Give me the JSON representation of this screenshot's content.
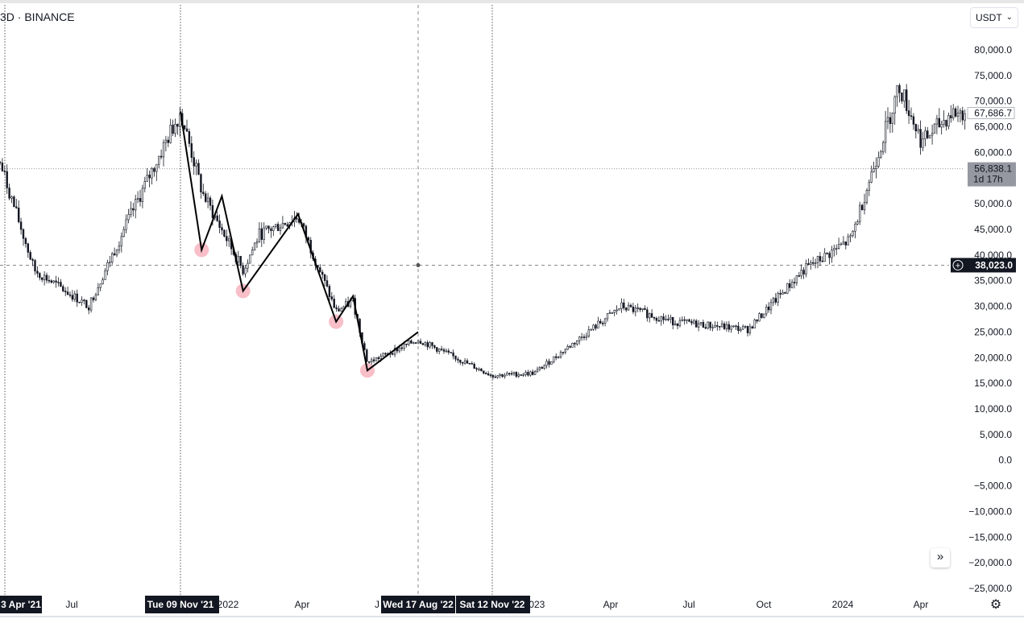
{
  "header": {
    "symbol_text": "3D · BINANCE",
    "currency_label": "USDT",
    "currency_chevron": "⌄"
  },
  "price_axis": {
    "ticks": [
      "80,000.0",
      "75,000.0",
      "70,000.0",
      "65,000.0",
      "60,000.0",
      "55,000.0",
      "50,000.0",
      "45,000.0",
      "40,000.0",
      "35,000.0",
      "30,000.0",
      "25,000.0",
      "20,000.0",
      "15,000.0",
      "10,000.0",
      "5,000.0",
      "0.0",
      "−5,000.0",
      "−10,000.0",
      "−15,000.0",
      "−20,000.0",
      "−25,000.0"
    ],
    "last_price": "67,686.7",
    "level_badge": {
      "price": "56,838.1",
      "countdown": "1d 17h"
    },
    "crosshair_price": "38,023.0",
    "crosshair_plus": "+"
  },
  "time_axis": {
    "ticks": [
      "Jul",
      "2022",
      "Apr",
      "J",
      "2023",
      "Apr",
      "Jul",
      "Oct",
      "2024",
      "Apr"
    ],
    "highlight_labels": [
      "3 Apr '21",
      "Tue 09 Nov '21",
      "Wed 17 Aug '22",
      "Sat 12 Nov '22"
    ]
  },
  "chart_data": {
    "type": "candlestick",
    "symbol": "3D · BINANCE",
    "currency": "USDT",
    "ylim": [
      -25000,
      80000
    ],
    "x": [
      "2021-04-03",
      "2021-05-15",
      "2021-07-20",
      "2021-09-07",
      "2021-11-09",
      "2021-12-05",
      "2022-01-22",
      "2022-02-10",
      "2022-03-28",
      "2022-05-12",
      "2022-06-01",
      "2022-06-18",
      "2022-08-17",
      "2022-11-12",
      "2023-01-01",
      "2023-04-14",
      "2023-06-15",
      "2023-09-11",
      "2023-11-15",
      "2024-01-11",
      "2024-03-14",
      "2024-04-12",
      "2024-05-20"
    ],
    "values": [
      58000,
      37000,
      30000,
      47000,
      68000,
      52000,
      37000,
      44000,
      47500,
      29000,
      31000,
      19000,
      23500,
      16500,
      17000,
      30000,
      27000,
      25500,
      37000,
      43000,
      73000,
      62000,
      67686.7
    ],
    "zigzag_drawing": [
      {
        "date": "2021-11-09",
        "price": 68000
      },
      {
        "date": "2021-12-04",
        "price": 41000
      },
      {
        "date": "2021-12-28",
        "price": 51500
      },
      {
        "date": "2022-01-22",
        "price": 33000
      },
      {
        "date": "2022-03-28",
        "price": 48000
      },
      {
        "date": "2022-05-12",
        "price": 27000
      },
      {
        "date": "2022-06-01",
        "price": 32000
      },
      {
        "date": "2022-06-18",
        "price": 17500
      },
      {
        "date": "2022-08-17",
        "price": 25000
      }
    ],
    "marked_lows": [
      {
        "date": "2021-12-04",
        "price": 41000
      },
      {
        "date": "2022-01-22",
        "price": 33000
      },
      {
        "date": "2022-05-12",
        "price": 27000
      },
      {
        "date": "2022-06-18",
        "price": 17500
      }
    ],
    "vertical_markers": [
      "2021-11-09",
      "2022-11-12"
    ],
    "crosshair": {
      "date": "2022-08-17",
      "price": 38023.0
    },
    "last_price": 67686.7,
    "horizontal_level": 56838.1,
    "grid": false
  },
  "theme": {
    "candle_color": "#131722",
    "highlight_color": "#f28b9b",
    "badge_dark": "#131722",
    "badge_gray": "#9598a1"
  }
}
